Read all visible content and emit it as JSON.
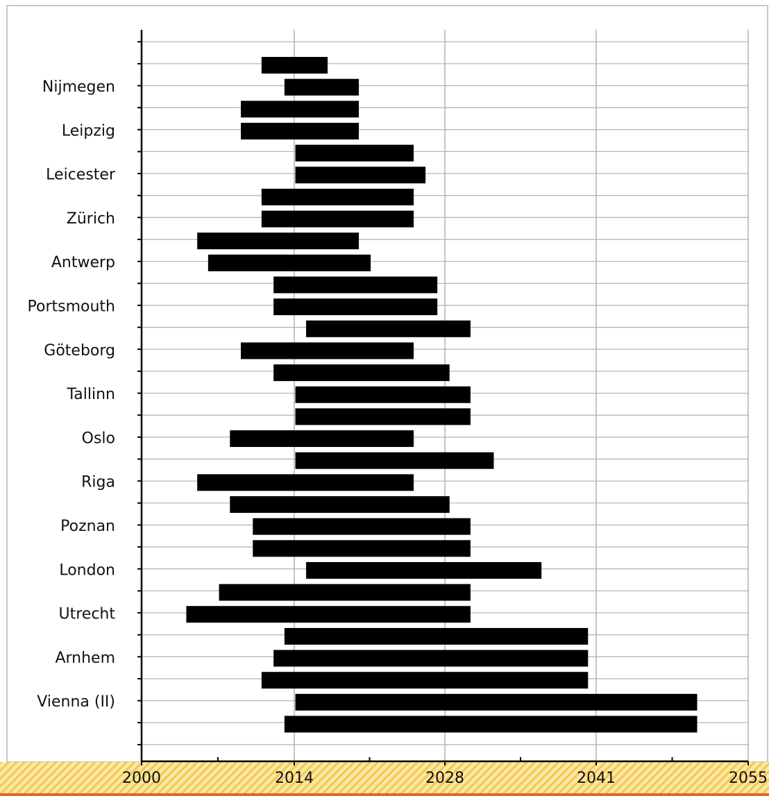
{
  "chart_data": {
    "type": "bar",
    "orientation": "horizontal-range",
    "x_ticks": [
      "2000",
      "2014",
      "2028",
      "2041",
      "2055"
    ],
    "xlim": [
      2000,
      2055
    ],
    "labeled_rows": [
      "Nijmegen",
      "Leipzig",
      "Leicester",
      "Zürich",
      "Antwerp",
      "Portsmouth",
      "Göteborg",
      "Tallinn",
      "Oslo",
      "Riga",
      "Poznan",
      "London",
      "Utrecht",
      "Arnhem",
      "Vienna (II)"
    ],
    "bars": [
      {
        "start": 2011.0,
        "end": 2017.1
      },
      {
        "start": 2013.1,
        "end": 2020.0
      },
      {
        "start": 2009.1,
        "end": 2020.0
      },
      {
        "start": 2009.1,
        "end": 2020.0
      },
      {
        "start": 2014.1,
        "end": 2025.1
      },
      {
        "start": 2014.1,
        "end": 2026.2
      },
      {
        "start": 2011.0,
        "end": 2025.1
      },
      {
        "start": 2011.0,
        "end": 2025.1
      },
      {
        "start": 2005.1,
        "end": 2020.0
      },
      {
        "start": 2006.1,
        "end": 2021.1
      },
      {
        "start": 2012.1,
        "end": 2027.3
      },
      {
        "start": 2012.1,
        "end": 2027.3
      },
      {
        "start": 2015.1,
        "end": 2030.2
      },
      {
        "start": 2009.1,
        "end": 2025.1
      },
      {
        "start": 2012.1,
        "end": 2028.4
      },
      {
        "start": 2014.1,
        "end": 2030.2
      },
      {
        "start": 2014.1,
        "end": 2030.2
      },
      {
        "start": 2008.1,
        "end": 2025.1
      },
      {
        "start": 2014.1,
        "end": 2032.2
      },
      {
        "start": 2005.1,
        "end": 2025.1
      },
      {
        "start": 2008.1,
        "end": 2028.4
      },
      {
        "start": 2010.2,
        "end": 2030.2
      },
      {
        "start": 2010.2,
        "end": 2030.2
      },
      {
        "start": 2015.1,
        "end": 2036.3
      },
      {
        "start": 2007.1,
        "end": 2030.2
      },
      {
        "start": 2004.1,
        "end": 2030.2
      },
      {
        "start": 2013.1,
        "end": 2040.3
      },
      {
        "start": 2012.1,
        "end": 2040.3
      },
      {
        "start": 2011.0,
        "end": 2040.3
      },
      {
        "start": 2014.1,
        "end": 2050.3
      },
      {
        "start": 2013.1,
        "end": 2050.3
      }
    ],
    "grid": "on",
    "colors": {
      "bar": "#000000",
      "grid": "#b0b0b0",
      "axis": "#000000",
      "footer_stripe": "#f2c84b"
    }
  }
}
